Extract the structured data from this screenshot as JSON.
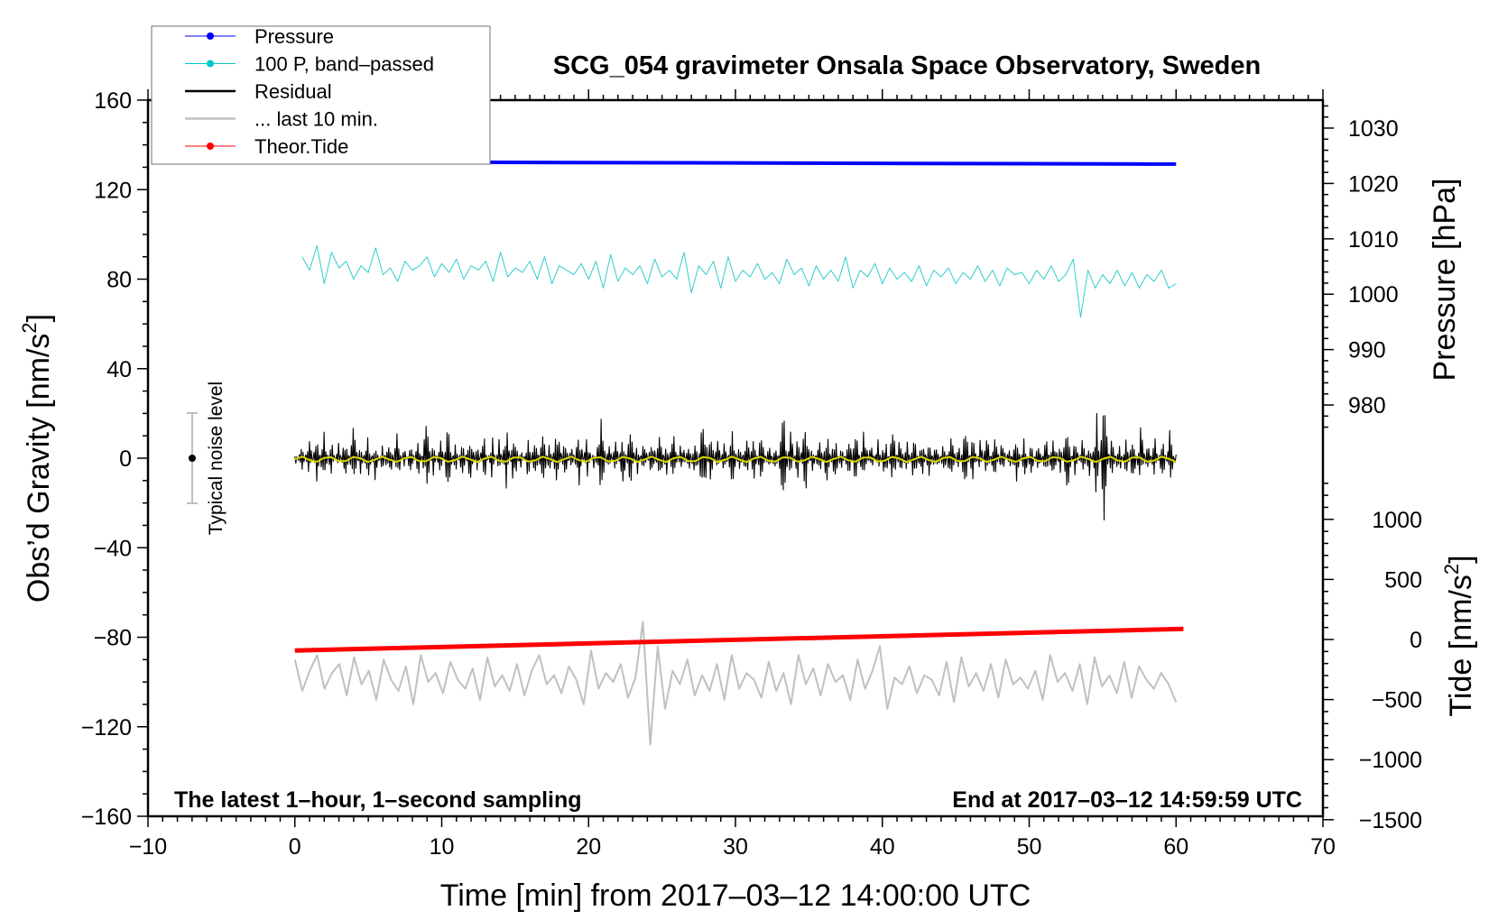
{
  "chart_data": {
    "type": "line",
    "title": "SCG_054 gravimeter Onsala Space Observatory, Sweden",
    "xlabel": "Time [min] from 2017–03–12 14:00:00 UTC",
    "ylabel_left": "Obs’d Gravity [nm/s",
    "ylabel_pressure": "Pressure [hPa]",
    "ylabel_tide": "Tide [nm/s",
    "superscript": "2",
    "ylabel_close": "]",
    "annotation_left": "The latest 1–hour, 1–second sampling",
    "annotation_right": "End at 2017–03–12 14:59:59 UTC",
    "noise_label": "Typical noise level",
    "noise_level": 20,
    "xlim": [
      -10,
      70
    ],
    "xticks": [
      "−10",
      "0",
      "10",
      "20",
      "30",
      "40",
      "50",
      "60",
      "70"
    ],
    "ylim": [
      -160,
      160
    ],
    "yticks": [
      "160",
      "120",
      "80",
      "40",
      "0",
      "−40",
      "−80",
      "−120",
      "−160"
    ],
    "pressure_ticks": [
      "1030",
      "1020",
      "1010",
      "1000",
      "990",
      "980"
    ],
    "tide_ticks": [
      "1000",
      "500",
      "0",
      "−500",
      "−1000",
      "−1500"
    ],
    "legend": [
      {
        "label": "Pressure",
        "color": "#0000ff",
        "style": "dot"
      },
      {
        "label": "100 P, band–passed",
        "color": "#00c8c8",
        "style": "dot"
      },
      {
        "label": "Residual",
        "color": "#000000",
        "style": "line"
      },
      {
        "label": "... last 10 min.",
        "color": "#c0c0c0",
        "style": "line"
      },
      {
        "label": "Theor.Tide",
        "color": "#ff0000",
        "style": "dot"
      }
    ],
    "series": {
      "pressure_hPa": {
        "x": [
          0,
          60
        ],
        "y": [
          1023.9,
          1023.5
        ]
      },
      "tide_nm_s2": {
        "x": [
          0,
          60.5
        ],
        "y": [
          -92,
          88
        ]
      },
      "bandpassed_100P": [
        90,
        84,
        95,
        78,
        92,
        85,
        88,
        80,
        86,
        83,
        94,
        82,
        85,
        79,
        88,
        84,
        86,
        90,
        81,
        87,
        83,
        89,
        80,
        86,
        84,
        88,
        79,
        92,
        81,
        85,
        83,
        88,
        80,
        90,
        78,
        86,
        84,
        82,
        87,
        80,
        88,
        76,
        91,
        79,
        85,
        82,
        86,
        78,
        89,
        81,
        84,
        80,
        92,
        74,
        86,
        82,
        88,
        76,
        90,
        79,
        84,
        81,
        87,
        80,
        83,
        78,
        89,
        82,
        85,
        77,
        86,
        80,
        84,
        79,
        90,
        76,
        84,
        81,
        87,
        78,
        85,
        80,
        83,
        79,
        86,
        77,
        84,
        81,
        85,
        78,
        83,
        80,
        86,
        79,
        84,
        77,
        85,
        82,
        83,
        78,
        84,
        80,
        86,
        79,
        82,
        89,
        63,
        84,
        76,
        82,
        78,
        84,
        77,
        83,
        76,
        82,
        79,
        84,
        76,
        78
      ],
      "residual": [
        3,
        -5,
        8,
        -9,
        11,
        -7,
        6,
        -10,
        12,
        -6,
        9,
        -8,
        5,
        -11,
        10,
        -4,
        7,
        -9,
        13,
        -7,
        8,
        -12,
        6,
        -8,
        11,
        -5,
        9,
        -10,
        7,
        -13,
        14,
        -6,
        8,
        -9,
        10,
        -7,
        12,
        -8,
        6,
        -11,
        9,
        -5,
        15,
        -8,
        7,
        -10,
        11,
        -6,
        8,
        -12,
        10,
        -7,
        13,
        -9,
        6,
        -10,
        18,
        -9,
        7,
        -8,
        11,
        -6,
        9,
        -11,
        12,
        -7,
        8,
        -19,
        10,
        -9,
        14,
        -6,
        8,
        -10,
        11,
        -7,
        9,
        -12,
        13,
        -6,
        7,
        -10,
        12,
        -9,
        8,
        -11,
        10,
        -7,
        9,
        -8,
        11,
        -6,
        12,
        -10,
        7,
        -9,
        13,
        -8,
        6,
        -11,
        10,
        -7,
        9,
        -9,
        11,
        -6,
        14,
        -10,
        8,
        -7,
        22,
        -24,
        10,
        -8,
        9,
        -11,
        12,
        -7,
        8,
        -10,
        11,
        -6
      ],
      "last_10_min": [
        -90,
        -104,
        -95,
        -88,
        -103,
        -96,
        -92,
        -106,
        -89,
        -101,
        -95,
        -108,
        -90,
        -99,
        -104,
        -93,
        -110,
        -88,
        -100,
        -96,
        -105,
        -91,
        -99,
        -103,
        -94,
        -108,
        -89,
        -102,
        -97,
        -104,
        -92,
        -106,
        -95,
        -88,
        -101,
        -97,
        -105,
        -93,
        -99,
        -110,
        -86,
        -103,
        -96,
        -100,
        -92,
        -107,
        -98,
        -73,
        -128,
        -84,
        -112,
        -95,
        -101,
        -90,
        -106,
        -97,
        -104,
        -92,
        -108,
        -88,
        -103,
        -96,
        -99,
        -107,
        -91,
        -104,
        -96,
        -110,
        -88,
        -101,
        -94,
        -106,
        -92,
        -100,
        -97,
        -108,
        -90,
        -103,
        -95,
        -84,
        -112,
        -98,
        -101,
        -93,
        -105,
        -97,
        -99,
        -106,
        -91,
        -109,
        -89,
        -102,
        -96,
        -104,
        -92,
        -107,
        -90,
        -101,
        -98,
        -103,
        -95,
        -108,
        -88,
        -100,
        -96,
        -104,
        -92,
        -110,
        -89,
        -102,
        -97,
        -105,
        -91,
        -107,
        -93,
        -99,
        -103,
        -96,
        -101,
        -109
      ]
    }
  }
}
